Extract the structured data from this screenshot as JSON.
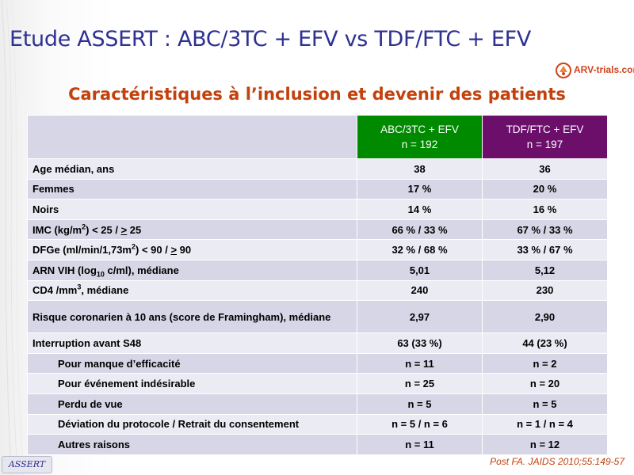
{
  "header": {
    "title": "Etude ASSERT : ABC/3TC + EFV vs TDF/FTC + EFV",
    "logo_text": "ARV-trials.com"
  },
  "subtitle": "Caractéristiques à l’inclusion et devenir des patients",
  "colors": {
    "title": "#2e3192",
    "accent": "#c2410c",
    "abc": "#008a00",
    "tdf": "#6b0f6b"
  },
  "table": {
    "head": {
      "abc_line1": "ABC/3TC + EFV",
      "abc_line2": "n = 192",
      "tdf_line1": "TDF/FTC + EFV",
      "tdf_line2": "n = 197"
    },
    "rows": [
      {
        "label": "Age médian, ans",
        "abc": "38",
        "tdf": "36"
      },
      {
        "label": "Femmes",
        "abc": "17 %",
        "tdf": "20 %"
      },
      {
        "label": "Noirs",
        "abc": "14 %",
        "tdf": "16 %"
      },
      {
        "label_a": "IMC (kg/m",
        "label_sup": "2",
        "label_b": ") < 25 / ",
        "label_ul": ">",
        "label_c": " 25",
        "abc": "66 % / 33 %",
        "tdf": "67 % / 33 %"
      },
      {
        "label_a": "DFGe (ml/min/1,73m",
        "label_sup": "2",
        "label_b": ") < 90 / ",
        "label_ul": ">",
        "label_c": " 90",
        "abc": "32 % / 68 %",
        "tdf": "33 % / 67 %"
      },
      {
        "label_a": "ARN VIH (log",
        "label_sub": "10",
        "label_b": " c/ml), médiane",
        "abc": "5,01",
        "tdf": "5,12"
      },
      {
        "label_a": "CD4 /mm",
        "label_sup": "3",
        "label_b": ", médiane",
        "abc": "240",
        "tdf": "230"
      },
      {
        "label": "Risque coronarien à 10 ans (score de Framingham), médiane",
        "abc": "2,97",
        "tdf": "2,90"
      },
      {
        "label": "Interruption avant S48",
        "abc": "63 (33 %)",
        "tdf": "44 (23 %)"
      },
      {
        "label": "Pour manque d’efficacité",
        "abc": "n = 11",
        "tdf": "n = 2"
      },
      {
        "label": "Pour événement indésirable",
        "abc": "n = 25",
        "tdf": "n = 20"
      },
      {
        "label": "Perdu de vue",
        "abc": "n = 5",
        "tdf": "n = 5"
      },
      {
        "label": "Déviation du protocole / Retrait du consentement",
        "abc": "n = 5 / n = 6",
        "tdf": "n = 1 / n = 4"
      },
      {
        "label": "Autres raisons",
        "abc": "n = 11",
        "tdf": "n = 12"
      }
    ]
  },
  "footer": {
    "badge": "ASSERT",
    "reference": "Post FA. JAIDS 2010;55:149-57"
  }
}
